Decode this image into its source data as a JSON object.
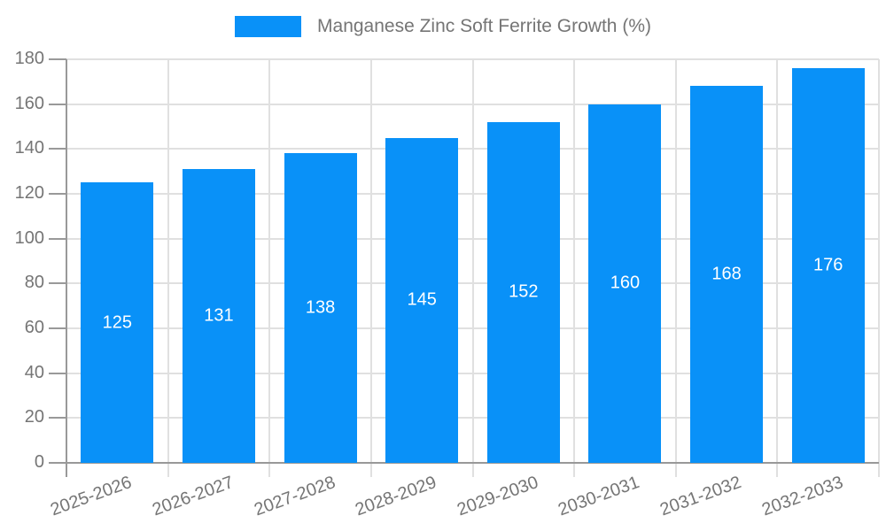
{
  "chart_data": {
    "type": "bar",
    "title": "Manganese Zinc Soft Ferrite Growth (%)",
    "categories": [
      "2025-2026",
      "2026-2027",
      "2027-2028",
      "2028-2029",
      "2029-2030",
      "2030-2031",
      "2031-2032",
      "2032-2033"
    ],
    "values": [
      125,
      131,
      138,
      145,
      152,
      160,
      168,
      176
    ],
    "xlabel": "",
    "ylabel": "",
    "ylim": [
      0,
      180
    ],
    "yticks": [
      0,
      20,
      40,
      60,
      80,
      100,
      120,
      140,
      160,
      180
    ],
    "grid": true,
    "legend_position": "top-center",
    "bar_labels_inside": true,
    "colors": {
      "bar": "#0991f8",
      "bar_label": "#ffffff",
      "axis": "#999999",
      "grid": "#e0e0e0",
      "text": "#757575"
    }
  }
}
